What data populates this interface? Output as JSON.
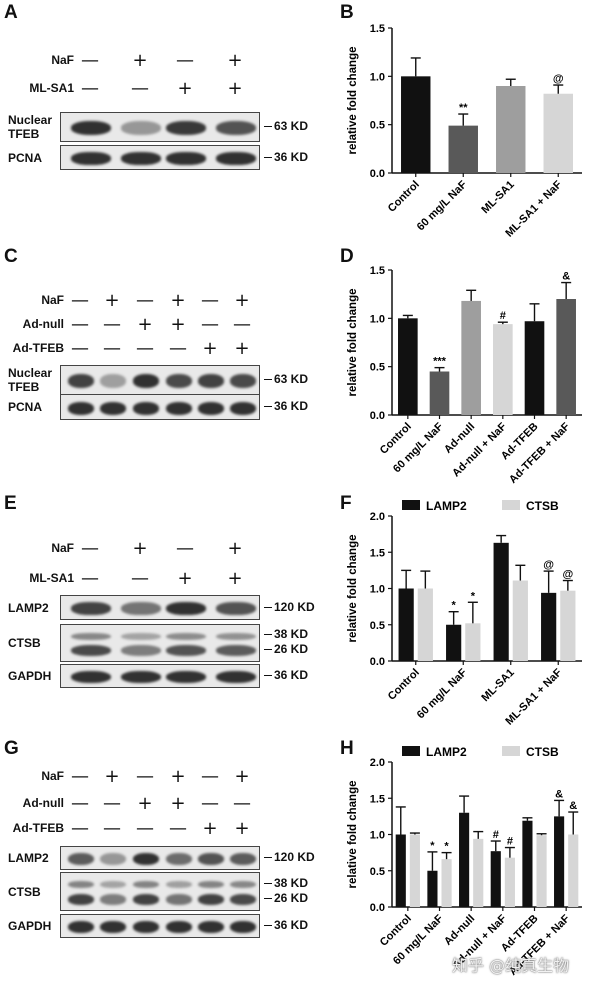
{
  "panels": {
    "A": {
      "letter": "A",
      "treatments": [
        {
          "name": "NaF",
          "signs": [
            "—",
            "+",
            "—",
            "+"
          ]
        },
        {
          "name": "ML-SA1",
          "signs": [
            "—",
            "—",
            "+",
            "+"
          ]
        }
      ],
      "blots": [
        {
          "label": "Nuclear\nTFEB",
          "kd": "63 KD",
          "intensities": [
            0.95,
            0.35,
            0.9,
            0.75
          ]
        },
        {
          "label": "PCNA",
          "kd": "36 KD",
          "intensities": [
            0.95,
            0.95,
            0.95,
            0.95
          ]
        }
      ]
    },
    "C": {
      "letter": "C",
      "treatments": [
        {
          "name": "NaF",
          "signs": [
            "—",
            "+",
            "—",
            "+",
            "—",
            "+"
          ]
        },
        {
          "name": "Ad-null",
          "signs": [
            "—",
            "—",
            "+",
            "+",
            "—",
            "—"
          ]
        },
        {
          "name": "Ad-TFEB",
          "signs": [
            "—",
            "—",
            "—",
            "—",
            "+",
            "+"
          ]
        }
      ],
      "blots": [
        {
          "label": "Nuclear\nTFEB",
          "kd": "63 KD",
          "intensities": [
            0.85,
            0.3,
            0.95,
            0.8,
            0.85,
            0.8
          ]
        },
        {
          "label": "PCNA",
          "kd": "36 KD",
          "intensities": [
            0.95,
            0.95,
            0.95,
            0.95,
            0.95,
            0.95
          ]
        }
      ]
    },
    "E": {
      "letter": "E",
      "treatments": [
        {
          "name": "NaF",
          "signs": [
            "—",
            "+",
            "—",
            "+"
          ]
        },
        {
          "name": "ML-SA1",
          "signs": [
            "—",
            "—",
            "+",
            "+"
          ]
        }
      ],
      "blots": [
        {
          "label": "LAMP2",
          "kd": "120 KD",
          "intensities": [
            0.85,
            0.55,
            0.95,
            0.75
          ]
        },
        {
          "label": "CTSB",
          "kd": "38 KD\n26 KD",
          "intensities": [
            0.8,
            0.5,
            0.75,
            0.7
          ]
        },
        {
          "label": "GAPDH",
          "kd": "36 KD",
          "intensities": [
            0.95,
            0.95,
            0.95,
            0.95
          ]
        }
      ]
    },
    "G": {
      "letter": "G",
      "treatments": [
        {
          "name": "NaF",
          "signs": [
            "—",
            "+",
            "—",
            "+",
            "—",
            "+"
          ]
        },
        {
          "name": "Ad-null",
          "signs": [
            "—",
            "—",
            "+",
            "+",
            "—",
            "—"
          ]
        },
        {
          "name": "Ad-TFEB",
          "signs": [
            "—",
            "—",
            "—",
            "—",
            "+",
            "+"
          ]
        }
      ],
      "blots": [
        {
          "label": "LAMP2",
          "kd": "120 KD",
          "intensities": [
            0.7,
            0.35,
            0.95,
            0.6,
            0.75,
            0.7
          ]
        },
        {
          "label": "CTSB",
          "kd": "38 KD\n26 KD",
          "intensities": [
            0.85,
            0.5,
            0.85,
            0.55,
            0.85,
            0.8
          ]
        },
        {
          "label": "GAPDH",
          "kd": "36 KD",
          "intensities": [
            0.95,
            0.95,
            0.95,
            0.95,
            0.95,
            0.95
          ]
        }
      ]
    }
  },
  "chart_data": [
    {
      "panel": "B",
      "type": "bar",
      "ylabel": "relative fold change",
      "ylim": [
        0,
        1.5
      ],
      "yticks": [
        0.0,
        0.5,
        1.0,
        1.5
      ],
      "categories": [
        "Control",
        "60 mg/L NaF",
        "ML-SA1",
        "ML-SA1 + NaF"
      ],
      "series": [
        {
          "values": [
            1.0,
            0.49,
            0.9,
            0.82
          ],
          "errors": [
            0.19,
            0.12,
            0.07,
            0.09
          ],
          "colors": [
            "#111111",
            "#595959",
            "#9e9e9e",
            "#d6d6d6"
          ]
        }
      ],
      "annotations": [
        "",
        "**",
        "",
        "@"
      ]
    },
    {
      "panel": "D",
      "type": "bar",
      "ylabel": "relative fold change",
      "ylim": [
        0,
        1.5
      ],
      "yticks": [
        0.0,
        0.5,
        1.0,
        1.5
      ],
      "categories": [
        "Control",
        "60 mg/L NaF",
        "Ad-null",
        "Ad-null + NaF",
        "Ad-TFEB",
        "Ad-TFEB + NaF"
      ],
      "series": [
        {
          "values": [
            1.0,
            0.45,
            1.18,
            0.94,
            0.97,
            1.2
          ],
          "errors": [
            0.03,
            0.04,
            0.11,
            0.02,
            0.18,
            0.17
          ],
          "colors": [
            "#111111",
            "#595959",
            "#9e9e9e",
            "#d6d6d6",
            "#111111",
            "#595959"
          ]
        }
      ],
      "annotations": [
        "",
        "***",
        "",
        "#",
        "",
        "&"
      ]
    },
    {
      "panel": "F",
      "type": "bar",
      "ylabel": "relative fold change",
      "ylim": [
        0,
        2.0
      ],
      "yticks": [
        0.0,
        0.5,
        1.0,
        1.5,
        2.0
      ],
      "categories": [
        "Control",
        "60 mg/L NaF",
        "ML-SA1",
        "ML-SA1 + NaF"
      ],
      "series": [
        {
          "name": "LAMP2",
          "color": "#111111",
          "values": [
            1.0,
            0.5,
            1.63,
            0.94
          ],
          "errors": [
            0.25,
            0.18,
            0.1,
            0.3
          ],
          "annotations": [
            "",
            "*",
            "",
            "@"
          ]
        },
        {
          "name": "CTSB",
          "color": "#d6d6d6",
          "values": [
            1.0,
            0.52,
            1.11,
            0.97
          ],
          "errors": [
            0.24,
            0.29,
            0.21,
            0.14
          ],
          "annotations": [
            "",
            "*",
            "",
            "@"
          ]
        }
      ]
    },
    {
      "panel": "H",
      "type": "bar",
      "ylabel": "relative fold change",
      "ylim": [
        0,
        2.0
      ],
      "yticks": [
        0.0,
        0.5,
        1.0,
        1.5,
        2.0
      ],
      "categories": [
        "Control",
        "60 mg/L NaF",
        "Ad-null",
        "Ad-null + NaF",
        "Ad-TFEB",
        "Ad-TFEB + NaF"
      ],
      "series": [
        {
          "name": "LAMP2",
          "color": "#111111",
          "values": [
            1.0,
            0.5,
            1.3,
            0.77,
            1.19,
            1.25
          ],
          "errors": [
            0.38,
            0.26,
            0.23,
            0.14,
            0.04,
            0.22
          ],
          "annotations": [
            "",
            "*",
            "",
            "#",
            "",
            "&"
          ]
        },
        {
          "name": "CTSB",
          "color": "#d6d6d6",
          "values": [
            1.0,
            0.66,
            0.94,
            0.68,
            0.99,
            1.0
          ],
          "errors": [
            0.02,
            0.09,
            0.1,
            0.14,
            0.02,
            0.31
          ],
          "annotations": [
            "",
            "*",
            "",
            "#",
            "",
            "&"
          ]
        }
      ]
    }
  ],
  "watermark": "知乎 @纯真生物"
}
